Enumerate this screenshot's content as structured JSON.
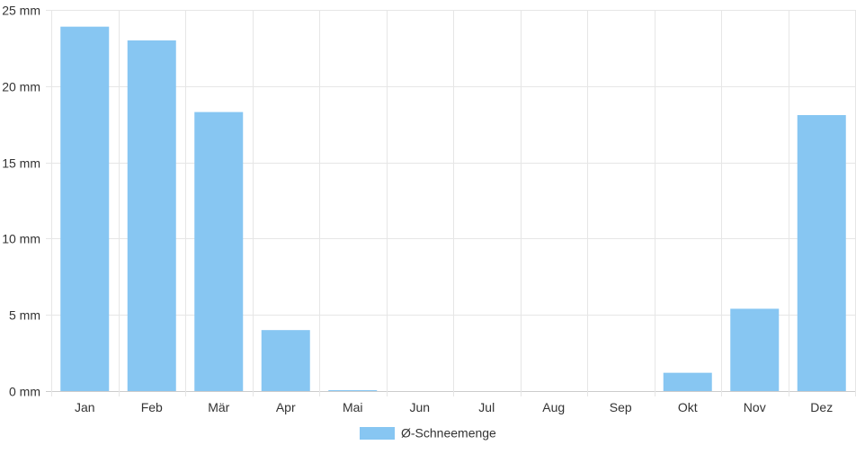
{
  "chart_data": {
    "type": "bar",
    "categories": [
      "Jan",
      "Feb",
      "Mär",
      "Apr",
      "Mai",
      "Jun",
      "Jul",
      "Aug",
      "Sep",
      "Okt",
      "Nov",
      "Dez"
    ],
    "series": [
      {
        "name": "Ø-Schneemenge",
        "values": [
          23.9,
          23.0,
          18.3,
          4.0,
          0.05,
          0,
          0,
          0,
          0,
          1.2,
          5.4,
          18.1
        ],
        "color": "#87c6f2"
      }
    ],
    "ylim": [
      0,
      25
    ],
    "yticks": [
      0,
      5,
      10,
      15,
      20,
      25
    ],
    "ytick_labels": [
      "0 mm",
      "5 mm",
      "10 mm",
      "15 mm",
      "20 mm",
      "25 mm"
    ],
    "grid": true,
    "legend_position": "bottom"
  }
}
